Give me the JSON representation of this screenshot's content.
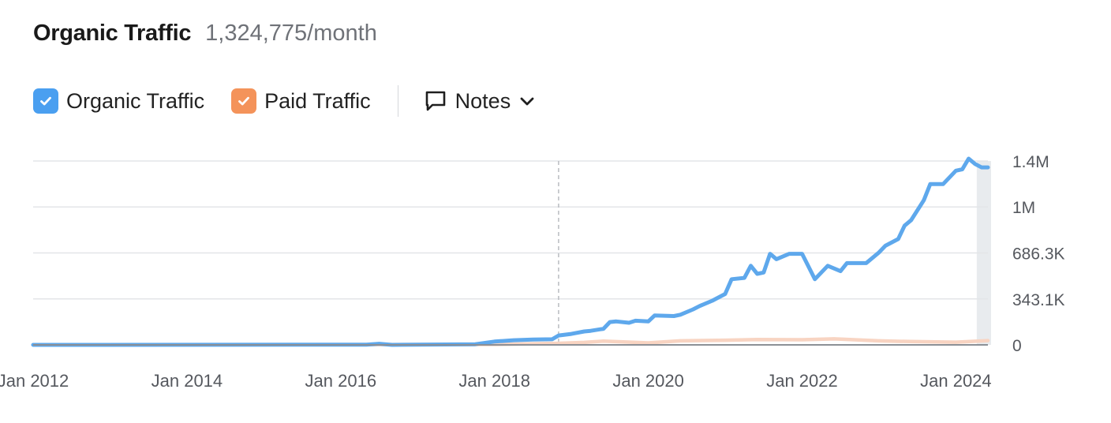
{
  "header": {
    "title": "Organic Traffic",
    "value": "1,324,775/month"
  },
  "legend": {
    "organic": {
      "label": "Organic Traffic",
      "checked": true,
      "color": "#4a9ff0"
    },
    "paid": {
      "label": "Paid Traffic",
      "checked": true,
      "color": "#f4935a"
    },
    "notes": {
      "label": "Notes",
      "icon": "comment-icon",
      "dropdown_icon": "chevron-down-icon"
    }
  },
  "colors": {
    "organic_line": "#5ea8ec",
    "paid_line": "#f8d4c2",
    "grid": "#e3e5e8",
    "marker": "#b9bcc1",
    "highlight_band": "#e8ebee"
  },
  "chart_data": {
    "type": "line",
    "title": "Organic Traffic",
    "xlabel": "",
    "ylabel": "",
    "x_ticks": [
      "Jan 2012",
      "Jan 2014",
      "Jan 2016",
      "Jan 2018",
      "Jan 2020",
      "Jan 2022",
      "Jan 2024"
    ],
    "y_ticks": [
      "0",
      "343.1K",
      "686.3K",
      "1M",
      "1.4M"
    ],
    "y_tick_values": [
      0,
      343100,
      686300,
      1029400,
      1372500
    ],
    "ylim": [
      0,
      1372500
    ],
    "xlim": [
      "2012-01",
      "2024-06"
    ],
    "grid": true,
    "vertical_marker": "2018-11",
    "highlight_band": [
      "2024-05",
      "2024-06"
    ],
    "series": [
      {
        "name": "Organic Traffic",
        "x": [
          "2012-01",
          "2016-05",
          "2016-07",
          "2016-09",
          "2017-10",
          "2018-01",
          "2018-04",
          "2018-07",
          "2018-10",
          "2018-11",
          "2019-01",
          "2019-03",
          "2019-04",
          "2019-06",
          "2019-07",
          "2019-08",
          "2019-10",
          "2019-11",
          "2020-01",
          "2020-02",
          "2020-05",
          "2020-06",
          "2020-08",
          "2020-09",
          "2020-11",
          "2021-01",
          "2021-02",
          "2021-04",
          "2021-05",
          "2021-06",
          "2021-07",
          "2021-08",
          "2021-09",
          "2021-11",
          "2022-01",
          "2022-03",
          "2022-05",
          "2022-06",
          "2022-07",
          "2022-08",
          "2022-11",
          "2023-01",
          "2023-02",
          "2023-04",
          "2023-05",
          "2023-06",
          "2023-08",
          "2023-09",
          "2023-11",
          "2024-01",
          "2024-02",
          "2024-03",
          "2024-04",
          "2024-05",
          "2024-06"
        ],
        "y": [
          0,
          2000,
          8000,
          0,
          5000,
          25000,
          35000,
          40000,
          42000,
          70000,
          82000,
          100000,
          105000,
          120000,
          170000,
          175000,
          165000,
          180000,
          175000,
          220000,
          215000,
          225000,
          265000,
          290000,
          330000,
          380000,
          490000,
          500000,
          590000,
          530000,
          540000,
          680000,
          640000,
          680000,
          680000,
          490000,
          590000,
          570000,
          550000,
          610000,
          610000,
          690000,
          740000,
          790000,
          890000,
          930000,
          1080000,
          1200000,
          1200000,
          1300000,
          1310000,
          1390000,
          1350000,
          1325000,
          1325000
        ]
      },
      {
        "name": "Paid Traffic",
        "x": [
          "2012-01",
          "2018-01",
          "2018-11",
          "2019-03",
          "2019-06",
          "2020-01",
          "2020-06",
          "2021-01",
          "2021-06",
          "2022-01",
          "2022-06",
          "2023-01",
          "2023-06",
          "2024-01",
          "2024-06"
        ],
        "y": [
          0,
          3000,
          12000,
          18000,
          28000,
          15000,
          30000,
          35000,
          40000,
          38000,
          45000,
          30000,
          25000,
          20000,
          32000
        ]
      }
    ]
  }
}
